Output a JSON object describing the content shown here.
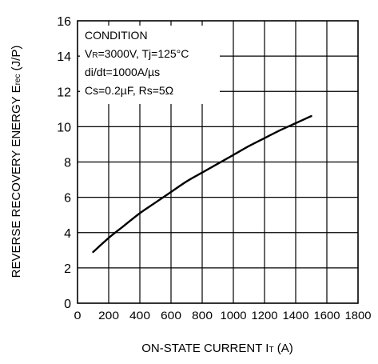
{
  "chart_data": {
    "type": "line",
    "title": "",
    "xlabel_main": "ON-STATE CURRENT I",
    "xlabel_sub": "T",
    "xlabel_unit": " (A)",
    "ylabel_main": "REVERSE RECOVERY ENERGY E",
    "ylabel_sub": "rec",
    "ylabel_unit": " (J/P)",
    "xlim": [
      0,
      1800
    ],
    "ylim": [
      0,
      16
    ],
    "x_ticks": [
      0,
      200,
      400,
      600,
      800,
      1000,
      1200,
      1400,
      1600,
      1800
    ],
    "y_ticks": [
      0,
      2,
      4,
      6,
      8,
      10,
      12,
      14,
      16
    ],
    "grid": true,
    "series": [
      {
        "x": [
          100,
          200,
          300,
          400,
          500,
          600,
          700,
          800,
          900,
          1000,
          1100,
          1200,
          1300,
          1400,
          1500
        ],
        "y": [
          2.9,
          3.7,
          4.4,
          5.1,
          5.7,
          6.3,
          6.9,
          7.4,
          7.9,
          8.4,
          8.9,
          9.35,
          9.8,
          10.2,
          10.6
        ]
      }
    ],
    "annotation": {
      "heading": "CONDITION",
      "line1_a": "V",
      "line1_sub": "R",
      "line1_b": "=3000V, Tj=125°C",
      "line2": "di/dt=1000A/µs",
      "line3": "Cs=0.2µF, Rs=5Ω"
    }
  }
}
